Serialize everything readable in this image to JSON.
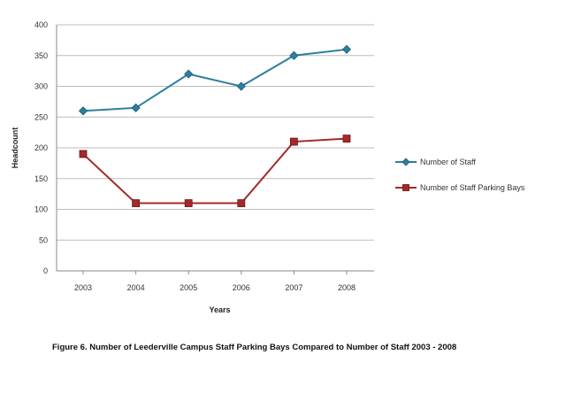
{
  "chart_data": {
    "type": "line",
    "xlabel": "Years",
    "ylabel": "Headcount",
    "categories": [
      "2003",
      "2004",
      "2005",
      "2006",
      "2007",
      "2008"
    ],
    "ylim": [
      0,
      400
    ],
    "yticks": [
      "0",
      "50",
      "100",
      "150",
      "200",
      "250",
      "300",
      "350",
      "400"
    ],
    "grid": true,
    "legend_position": "right",
    "series": [
      {
        "name": "Number of Staff",
        "values": [
          260,
          265,
          320,
          300,
          350,
          360
        ],
        "color": "#2e7f9e",
        "marker": "diamond"
      },
      {
        "name": "Number of Staff Parking Bays",
        "values": [
          190,
          110,
          110,
          110,
          210,
          215
        ],
        "color": "#a32a2a",
        "marker": "square"
      }
    ]
  },
  "caption": "Figure 6. Number of Leederville Campus Staff Parking Bays Compared to Number of Staff 2003 - 2008"
}
